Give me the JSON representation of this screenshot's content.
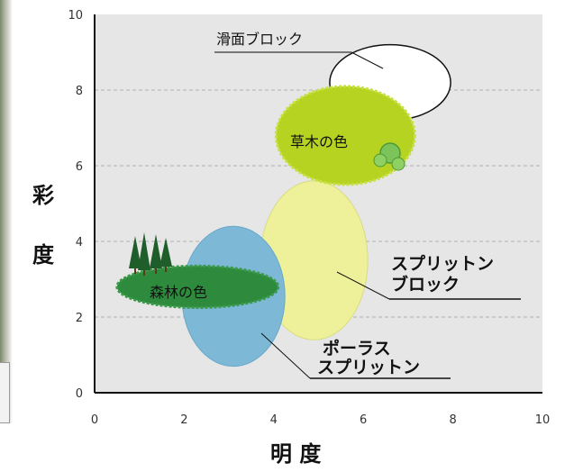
{
  "chart_data": {
    "type": "scatter",
    "xlabel": "明 度",
    "ylabel": "彩 度",
    "xlim": [
      0,
      10
    ],
    "ylim": [
      0,
      10
    ],
    "x_ticks": [
      0,
      2,
      4,
      6,
      8,
      10
    ],
    "y_ticks": [
      0,
      2,
      4,
      6,
      8,
      10
    ],
    "dashed_grid_y": [
      2,
      4,
      6,
      8
    ],
    "grid": "horizontal dashed",
    "regions": [
      {
        "label": "滑面ブロック",
        "center_x": 6.6,
        "center_y": 8.2,
        "rx_units": 1.35,
        "ry_units": 1.0,
        "color": "#ffffff"
      },
      {
        "label": "草木の色",
        "center_x": 5.6,
        "center_y": 6.8,
        "rx_units": 1.55,
        "ry_units": 1.3,
        "color": "#b6d322"
      },
      {
        "label": "スプリットン ブロック",
        "center_x": 4.9,
        "center_y": 3.5,
        "rx_units": 1.2,
        "ry_units": 2.1,
        "color": "#eef19a"
      },
      {
        "label": "ポーラス スプリットン",
        "center_x": 3.1,
        "center_y": 2.55,
        "rx_units": 1.15,
        "ry_units": 1.85,
        "color": "#7db8d6"
      },
      {
        "label": "森林の色",
        "center_x": 2.3,
        "center_y": 2.8,
        "rx_units": 1.8,
        "ry_units": 0.55,
        "color": "#2e8b3e"
      }
    ],
    "labels": {
      "sliding": "滑面ブロック",
      "plants": "草木の色",
      "splitton_line1": "スプリットン",
      "splitton_line2": "ブロック",
      "porous_line1": "ポーラス",
      "porous_line2": "スプリットン",
      "forest": "森林の色"
    }
  }
}
